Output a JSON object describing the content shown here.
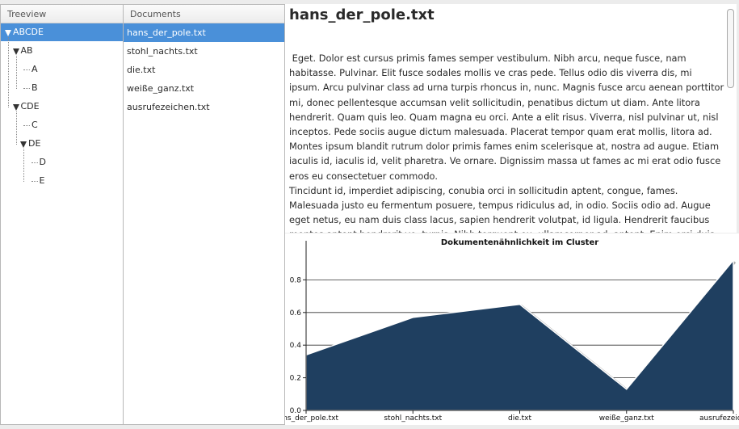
{
  "treeview": {
    "header": "Treeview",
    "nodes": [
      {
        "label": "ABCDE",
        "level": 0,
        "expanded": true,
        "selected": true
      },
      {
        "label": "AB",
        "level": 1,
        "expanded": true
      },
      {
        "label": "A",
        "level": 2
      },
      {
        "label": "B",
        "level": 2
      },
      {
        "label": "CDE",
        "level": 1,
        "expanded": true
      },
      {
        "label": "C",
        "level": 2
      },
      {
        "label": "DE",
        "level": 2,
        "expanded": true
      },
      {
        "label": "D",
        "level": 3
      },
      {
        "label": "E",
        "level": 3
      }
    ]
  },
  "documents": {
    "header": "Documents",
    "items": [
      "hans_der_pole.txt",
      "stohl_nachts.txt",
      "die.txt",
      "weiße_ganz.txt",
      "ausrufezeichen.txt"
    ],
    "selected_index": 0
  },
  "viewer": {
    "title": "hans_der_pole.txt",
    "body": " Eget. Dolor est cursus primis fames semper vestibulum. Nibh arcu, neque fusce, nam habitasse. Pulvinar. Elit fusce sodales mollis ve cras pede. Tellus odio dis viverra dis, mi ipsum. Arcu pulvinar class ad urna turpis rhoncus in, nunc. Magnis fusce arcu aenean porttitor mi, donec pellentesque accumsan velit sollicitudin, penatibus dictum ut diam. Ante litora hendrerit. Quam quis leo. Quam magna eu orci. Ante a elit risus. Viverra, nisl pulvinar ut, nisl inceptos. Pede sociis augue dictum malesuada. Placerat tempor quam erat mollis, litora ad. Montes ipsum blandit rutrum dolor primis fames enim scelerisque at, nostra ad augue. Etiam iaculis id, iaculis id, velit pharetra. Ve ornare. Dignissim massa ut fames ac mi erat odio fusce eros eu consectetuer commodo.\nTincidunt id, imperdiet adipiscing, conubia orci in sollicitudin aptent, congue, fames. Malesuada justo eu fermentum posuere, tempus ridiculus ad, in odio. Sociis odio ad. Augue eget netus, eu nam duis class lacus, sapien hendrerit volutpat, id ligula. Hendrerit faucibus montes aptent hendrerit ve, turpis. Nibh torquent eu, ullamcorper ad, aptent. Enim orci duis. Nisi vivamus"
  },
  "colors": {
    "selection": "#4a90d9",
    "area_fill": "#1f3f60"
  },
  "chart_data": {
    "type": "area",
    "title": "Dokumentenähnlichkeit im Cluster",
    "categories": [
      "hans_der_pole.txt",
      "stohl_nachts.txt",
      "die.txt",
      "weiße_ganz.txt",
      "ausrufezeichen.txt"
    ],
    "values": [
      0.34,
      0.57,
      0.65,
      0.13,
      0.92
    ],
    "ylim": [
      0,
      1
    ],
    "yticks": [
      0,
      0.2,
      0.4,
      0.6,
      0.8
    ],
    "ytick_labels": [
      "0.0",
      "0.2",
      "0.4",
      "0.6",
      "0.8"
    ],
    "grid": true
  }
}
